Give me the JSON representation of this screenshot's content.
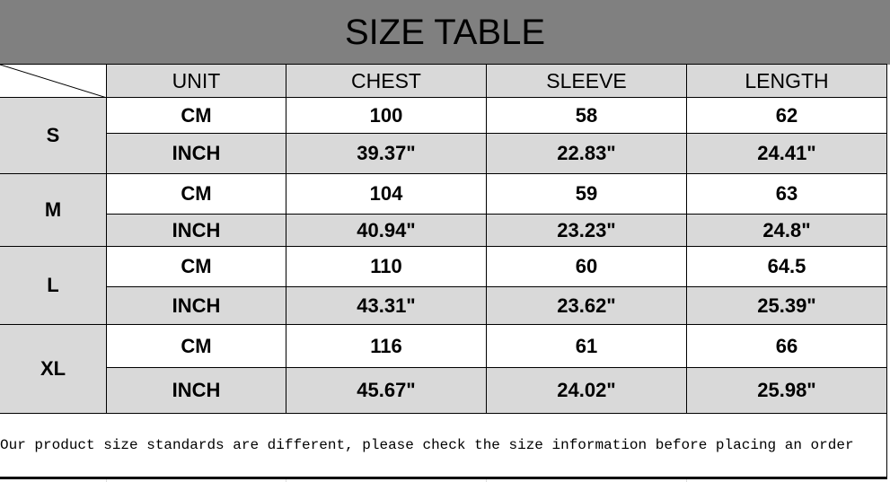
{
  "title": "SIZE TABLE",
  "headers": [
    "UNIT",
    "CHEST",
    "SLEEVE",
    "LENGTH"
  ],
  "rows": [
    {
      "size": "S",
      "cm": {
        "unit": "CM",
        "chest": "100",
        "sleeve": "58",
        "length": "62"
      },
      "inch": {
        "unit": "INCH",
        "chest": "39.37\"",
        "sleeve": "22.83\"",
        "length": "24.41\""
      }
    },
    {
      "size": "M",
      "cm": {
        "unit": "CM",
        "chest": "104",
        "sleeve": "59",
        "length": "63"
      },
      "inch": {
        "unit": "INCH",
        "chest": "40.94\"",
        "sleeve": "23.23\"",
        "length": "24.8\""
      }
    },
    {
      "size": "L",
      "cm": {
        "unit": "CM",
        "chest": "110",
        "sleeve": "60",
        "length": "64.5"
      },
      "inch": {
        "unit": "INCH",
        "chest": "43.31\"",
        "sleeve": "23.62\"",
        "length": "25.39\""
      }
    },
    {
      "size": "XL",
      "cm": {
        "unit": "CM",
        "chest": "116",
        "sleeve": "61",
        "length": "66"
      },
      "inch": {
        "unit": "INCH",
        "chest": "45.67\"",
        "sleeve": "24.02\"",
        "length": "25.98\""
      }
    }
  ],
  "note": "Our product size standards are different, please check the size information before placing an order",
  "colors": {
    "title_bg": "#808080",
    "cell_gray": "#d9d9d9"
  }
}
